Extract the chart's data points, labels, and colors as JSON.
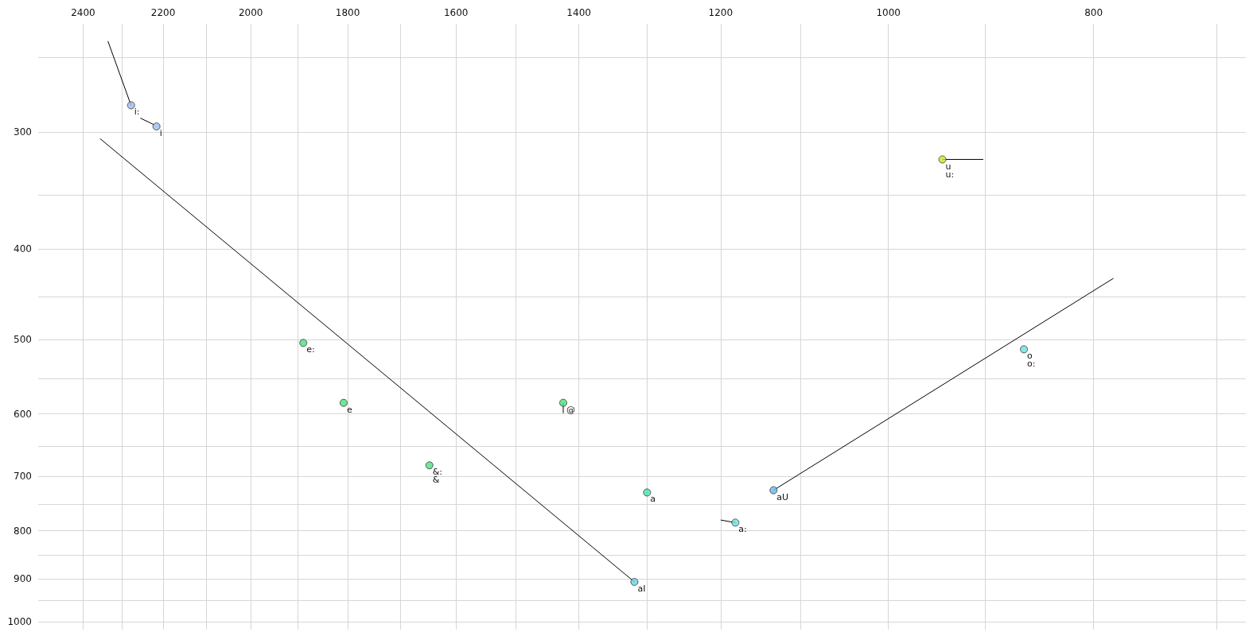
{
  "chart_data": {
    "type": "scatter",
    "x": [
      2278,
      2216,
      1889,
      1808,
      1647,
      1424,
      1300,
      1318,
      1181,
      1133,
      943,
      863
    ],
    "values": [
      281,
      296,
      504,
      584,
      681,
      584,
      728,
      907,
      784,
      724,
      321,
      512
    ],
    "colors": [
      "#9dbdf0",
      "#9dbdf0",
      "#4ce07c",
      "#4ce07c",
      "#4ce07c",
      "#4ce07c",
      "#48e0b0",
      "#6ad0e6",
      "#6ce0e0",
      "#6ab8ee",
      "#c8e62a",
      "#6ce0e0"
    ],
    "marker": "circle",
    "series": [
      {
        "type": "line",
        "marker": "none",
        "color": "#000000",
        "x": [
          2336,
          2278
        ],
        "values": [
          240,
          281
        ]
      },
      {
        "type": "line",
        "marker": "none",
        "color": "#000000",
        "x": [
          2255,
          2220
        ],
        "values": [
          290,
          295
        ]
      },
      {
        "type": "line",
        "marker": "none",
        "color": "#000000",
        "x": [
          2356,
          1318
        ],
        "values": [
          305,
          907
        ]
      },
      {
        "type": "line",
        "marker": "none",
        "color": "#000000",
        "x": [
          1424,
          1424
        ],
        "values": [
          584,
          599
        ]
      },
      {
        "type": "line",
        "marker": "none",
        "color": "#000000",
        "x": [
          1200,
          1181
        ],
        "values": [
          779,
          784
        ]
      },
      {
        "type": "line",
        "marker": "none",
        "color": "#000000",
        "x": [
          1133,
          783
        ],
        "values": [
          724,
          430
        ]
      },
      {
        "type": "line",
        "marker": "none",
        "color": "#000000",
        "x": [
          943,
          902
        ],
        "values": [
          321,
          321
        ]
      }
    ],
    "annotations": [
      {
        "text": "i:",
        "x": 2278,
        "y": 281
      },
      {
        "text": "i",
        "x": 2216,
        "y": 296
      },
      {
        "text": "e:",
        "x": 1889,
        "y": 504
      },
      {
        "text": "e",
        "x": 1808,
        "y": 584
      },
      {
        "text": "&:",
        "x": 1647,
        "y": 681
      },
      {
        "text": "&",
        "x": 1647,
        "y": 681
      },
      {
        "text": "@",
        "x": 1424,
        "y": 584
      },
      {
        "text": "a",
        "x": 1300,
        "y": 728
      },
      {
        "text": "aI",
        "x": 1318,
        "y": 907
      },
      {
        "text": "a:",
        "x": 1181,
        "y": 784
      },
      {
        "text": "aU",
        "x": 1133,
        "y": 724
      },
      {
        "text": "u",
        "x": 943,
        "y": 321
      },
      {
        "text": "u:",
        "x": 943,
        "y": 321
      },
      {
        "text": "o",
        "x": 863,
        "y": 512
      },
      {
        "text": "o:",
        "x": 863,
        "y": 512
      }
    ],
    "xlim": [
      2520,
      678
    ],
    "ylim": [
      1020,
      230
    ],
    "xticks": [
      2400,
      {
        "value": 2300,
        "label": null
      },
      2200,
      {
        "value": 2100,
        "label": null
      },
      2000,
      {
        "value": 1900,
        "label": null
      },
      1800,
      {
        "value": 1700,
        "label": null
      },
      1600,
      {
        "value": 1500,
        "label": null
      },
      1400,
      {
        "value": 1300,
        "label": null
      },
      1200,
      {
        "value": 1100,
        "label": null
      },
      1000,
      {
        "value": 900,
        "label": null
      },
      800,
      {
        "value": 700,
        "label": null
      }
    ],
    "yticks": [
      {
        "value": 250,
        "label": null
      },
      300,
      {
        "value": 350,
        "label": null
      },
      400,
      {
        "value": 450,
        "label": null
      },
      500,
      {
        "value": 550,
        "label": null
      },
      600,
      {
        "value": 650,
        "label": null
      },
      700,
      {
        "value": 750,
        "label": null
      },
      800,
      {
        "value": 850,
        "label": null
      },
      900,
      {
        "value": 950,
        "label": null
      },
      1000
    ],
    "log": "xy",
    "grid": true
  }
}
